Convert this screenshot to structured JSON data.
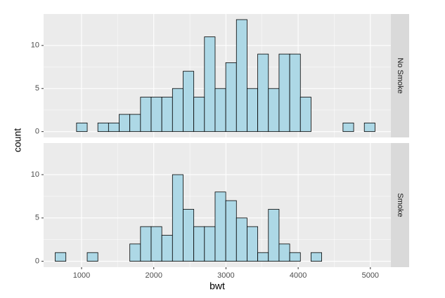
{
  "chart_data": {
    "type": "histogram",
    "x_label": "bwt",
    "y_label": "count",
    "bins": [
      635.2,
      782.8,
      930.4,
      1078.1,
      1225.7,
      1373.3,
      1520.9,
      1668.5,
      1816.2,
      1963.8,
      2111.4,
      2259.0,
      2406.6,
      2554.3,
      2701.9,
      2849.5,
      2997.1,
      3144.7,
      3292.4,
      3440.0,
      3587.6,
      3735.2,
      3882.8,
      4030.5,
      4178.1,
      4325.7,
      4473.3,
      4620.9,
      4768.6,
      4916.2,
      5063.8
    ],
    "facets": [
      {
        "label": "No Smoke",
        "counts": [
          0,
          0,
          1,
          0,
          1,
          1,
          2,
          2,
          4,
          4,
          4,
          5,
          7,
          4,
          11,
          5,
          8,
          13,
          5,
          9,
          5,
          9,
          9,
          4,
          0,
          0,
          0,
          1,
          0,
          1
        ]
      },
      {
        "label": "Smoke",
        "counts": [
          1,
          0,
          0,
          1,
          0,
          0,
          0,
          2,
          4,
          4,
          3,
          10,
          6,
          4,
          4,
          8,
          7,
          5,
          4,
          1,
          6,
          2,
          1,
          0,
          1,
          0,
          0,
          0,
          0,
          0
        ]
      }
    ],
    "color": "#add8e6",
    "xlim": [
      474,
      5284
    ],
    "xticks": [
      1000,
      2000,
      3000,
      4000,
      5000
    ],
    "ylim": [
      -0.68,
      13.65
    ],
    "yticks": [
      0,
      5,
      10
    ],
    "grid": true
  }
}
